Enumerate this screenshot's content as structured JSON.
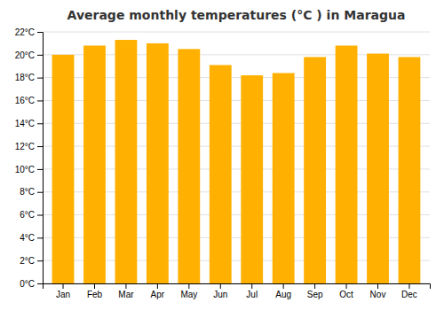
{
  "chart_data": {
    "type": "bar",
    "title": "Average monthly temperatures (°C ) in Maragua",
    "categories": [
      "Jan",
      "Feb",
      "Mar",
      "Apr",
      "May",
      "Jun",
      "Jul",
      "Aug",
      "Sep",
      "Oct",
      "Nov",
      "Dec"
    ],
    "values": [
      20.0,
      20.8,
      21.3,
      21.0,
      20.5,
      19.1,
      18.2,
      18.4,
      19.8,
      20.8,
      20.1,
      19.8
    ],
    "color": "#FFB000",
    "ylim": [
      0,
      22
    ],
    "yticks": [
      {
        "value": 0,
        "label": "0°C"
      },
      {
        "value": 2,
        "label": "2°C"
      },
      {
        "value": 4,
        "label": "4°C"
      },
      {
        "value": 6,
        "label": "6°C"
      },
      {
        "value": 8,
        "label": "8°C"
      },
      {
        "value": 10,
        "label": "10°C"
      },
      {
        "value": 12,
        "label": "12°C"
      },
      {
        "value": 14,
        "label": "14°C"
      },
      {
        "value": 16,
        "label": "16°C"
      },
      {
        "value": 18,
        "label": "18°C"
      },
      {
        "value": 20,
        "label": "20°C"
      },
      {
        "value": 22,
        "label": "22°C"
      }
    ],
    "grid": true
  }
}
